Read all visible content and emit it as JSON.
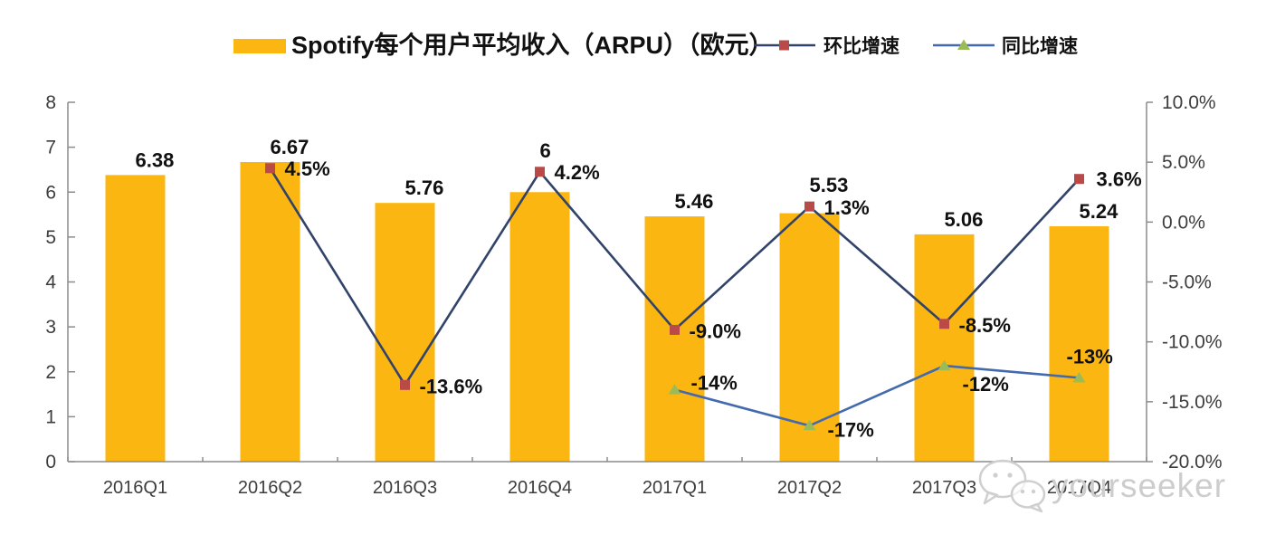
{
  "watermark": {
    "text": "yourseeker",
    "icon": "wechat-icon"
  },
  "legend": [
    {
      "label": "Spotify每个用户平均收入（ARPU）（欧元）",
      "type": "bar-swatch",
      "color": "#FBB612"
    },
    {
      "label": "环比增速",
      "type": "line-square",
      "line_color": "#32436A",
      "marker_color": "#BA4A47"
    },
    {
      "label": "同比增速",
      "type": "line-triangle",
      "line_color": "#4369AE",
      "marker_color": "#9BBB59"
    }
  ],
  "chart_data": {
    "type": "bar",
    "subtype": "bar+line combo, dual axis",
    "title": "Spotify每个用户平均收入（ARPU）（欧元）",
    "categories": [
      "2016Q1",
      "2016Q2",
      "2016Q3",
      "2016Q4",
      "2017Q1",
      "2017Q2",
      "2017Q3",
      "2017Q4"
    ],
    "series": [
      {
        "name": "Spotify每个用户平均收入（ARPU）（欧元）",
        "type": "bar",
        "axis": "left",
        "color": "#FBB612",
        "values": [
          6.38,
          6.67,
          5.76,
          6,
          5.46,
          5.53,
          5.06,
          5.24
        ],
        "labels": [
          "6.38",
          "6.67",
          "5.76",
          "6",
          "5.46",
          "5.53",
          "5.06",
          "5.24"
        ]
      },
      {
        "name": "环比增速",
        "type": "line",
        "axis": "right",
        "marker": "square",
        "line_color": "#32436A",
        "marker_color": "#BA4A47",
        "values": [
          null,
          4.5,
          -13.6,
          4.2,
          -9.0,
          1.3,
          -8.5,
          3.6
        ],
        "labels": [
          null,
          "4.5%",
          "-13.6%",
          "4.2%",
          "-9.0%",
          "1.3%",
          "-8.5%",
          "3.6%"
        ],
        "label_dx": [
          null,
          16,
          16,
          16,
          16,
          16,
          16,
          19
        ],
        "label_dy": [
          null,
          8,
          9,
          8,
          9,
          9,
          9,
          8
        ]
      },
      {
        "name": "同比增速",
        "type": "line",
        "axis": "right",
        "marker": "triangle",
        "line_color": "#4369AE",
        "marker_color": "#9BBB59",
        "values": [
          null,
          null,
          null,
          null,
          -14,
          -17,
          -12,
          -13
        ],
        "labels": [
          null,
          null,
          null,
          null,
          "-14%",
          "-17%",
          "-12%",
          "-13%"
        ],
        "label_dx": [
          null,
          null,
          null,
          null,
          18,
          20,
          20,
          -14
        ],
        "label_dy": [
          null,
          null,
          null,
          null,
          0,
          12,
          28,
          -16
        ]
      }
    ],
    "left_axis": {
      "min": 0,
      "max": 8,
      "tick_values": [
        0,
        1,
        2,
        3,
        4,
        5,
        6,
        7,
        8
      ],
      "ticks": [
        "0",
        "1",
        "2",
        "3",
        "4",
        "5",
        "6",
        "7",
        "8"
      ]
    },
    "right_axis": {
      "min": -20,
      "max": 10,
      "tick_values": [
        10,
        5,
        0,
        -5,
        -10,
        -15,
        -20
      ],
      "ticks": [
        "10.0%",
        "5.0%",
        "0.0%",
        "-5.0%",
        "-10.0%",
        "-15.0%",
        "-20.0%"
      ]
    },
    "grid": false,
    "legend_position": "top",
    "colors": {
      "bar": "#FBB612",
      "qoq_line": "#32436A",
      "qoq_marker": "#BA4A47",
      "yoy_line": "#4369AE",
      "yoy_marker": "#9BBB59",
      "axis_line": "#8C8C8C",
      "tick_label": "#3D3D3D",
      "data_label": "#111111",
      "watermark": "#CDCDCD"
    }
  }
}
